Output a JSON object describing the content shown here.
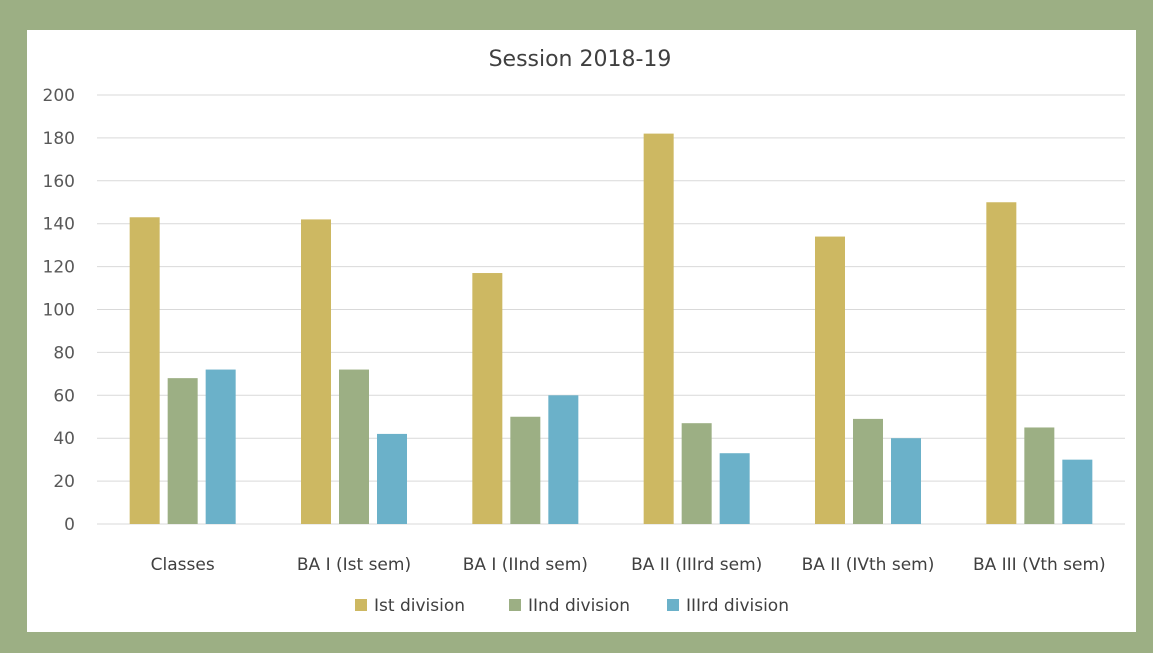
{
  "chart_data": {
    "type": "bar",
    "title": "Session 2018-19",
    "categories": [
      "Classes",
      "BA I (Ist sem)",
      "BA I (IInd sem)",
      "BA II (IIIrd sem)",
      "BA II (IVth sem)",
      "BA III (Vth sem)"
    ],
    "series": [
      {
        "name": "Ist division",
        "color": "#cdb862",
        "values": [
          143,
          142,
          117,
          182,
          134,
          150
        ]
      },
      {
        "name": "IInd division",
        "color": "#9caf84",
        "values": [
          68,
          72,
          50,
          47,
          49,
          45
        ]
      },
      {
        "name": "IIIrd division",
        "color": "#6bb1c9",
        "values": [
          72,
          42,
          60,
          33,
          40,
          30
        ]
      }
    ],
    "ylim": [
      0,
      200
    ],
    "yticks": [
      0,
      20,
      40,
      60,
      80,
      100,
      120,
      140,
      160,
      180,
      200
    ],
    "grid": true,
    "legend_position": "bottom"
  },
  "colors": {
    "frame": "#9caf84",
    "background": "#ffffff",
    "gridline": "#d9d9d9"
  }
}
